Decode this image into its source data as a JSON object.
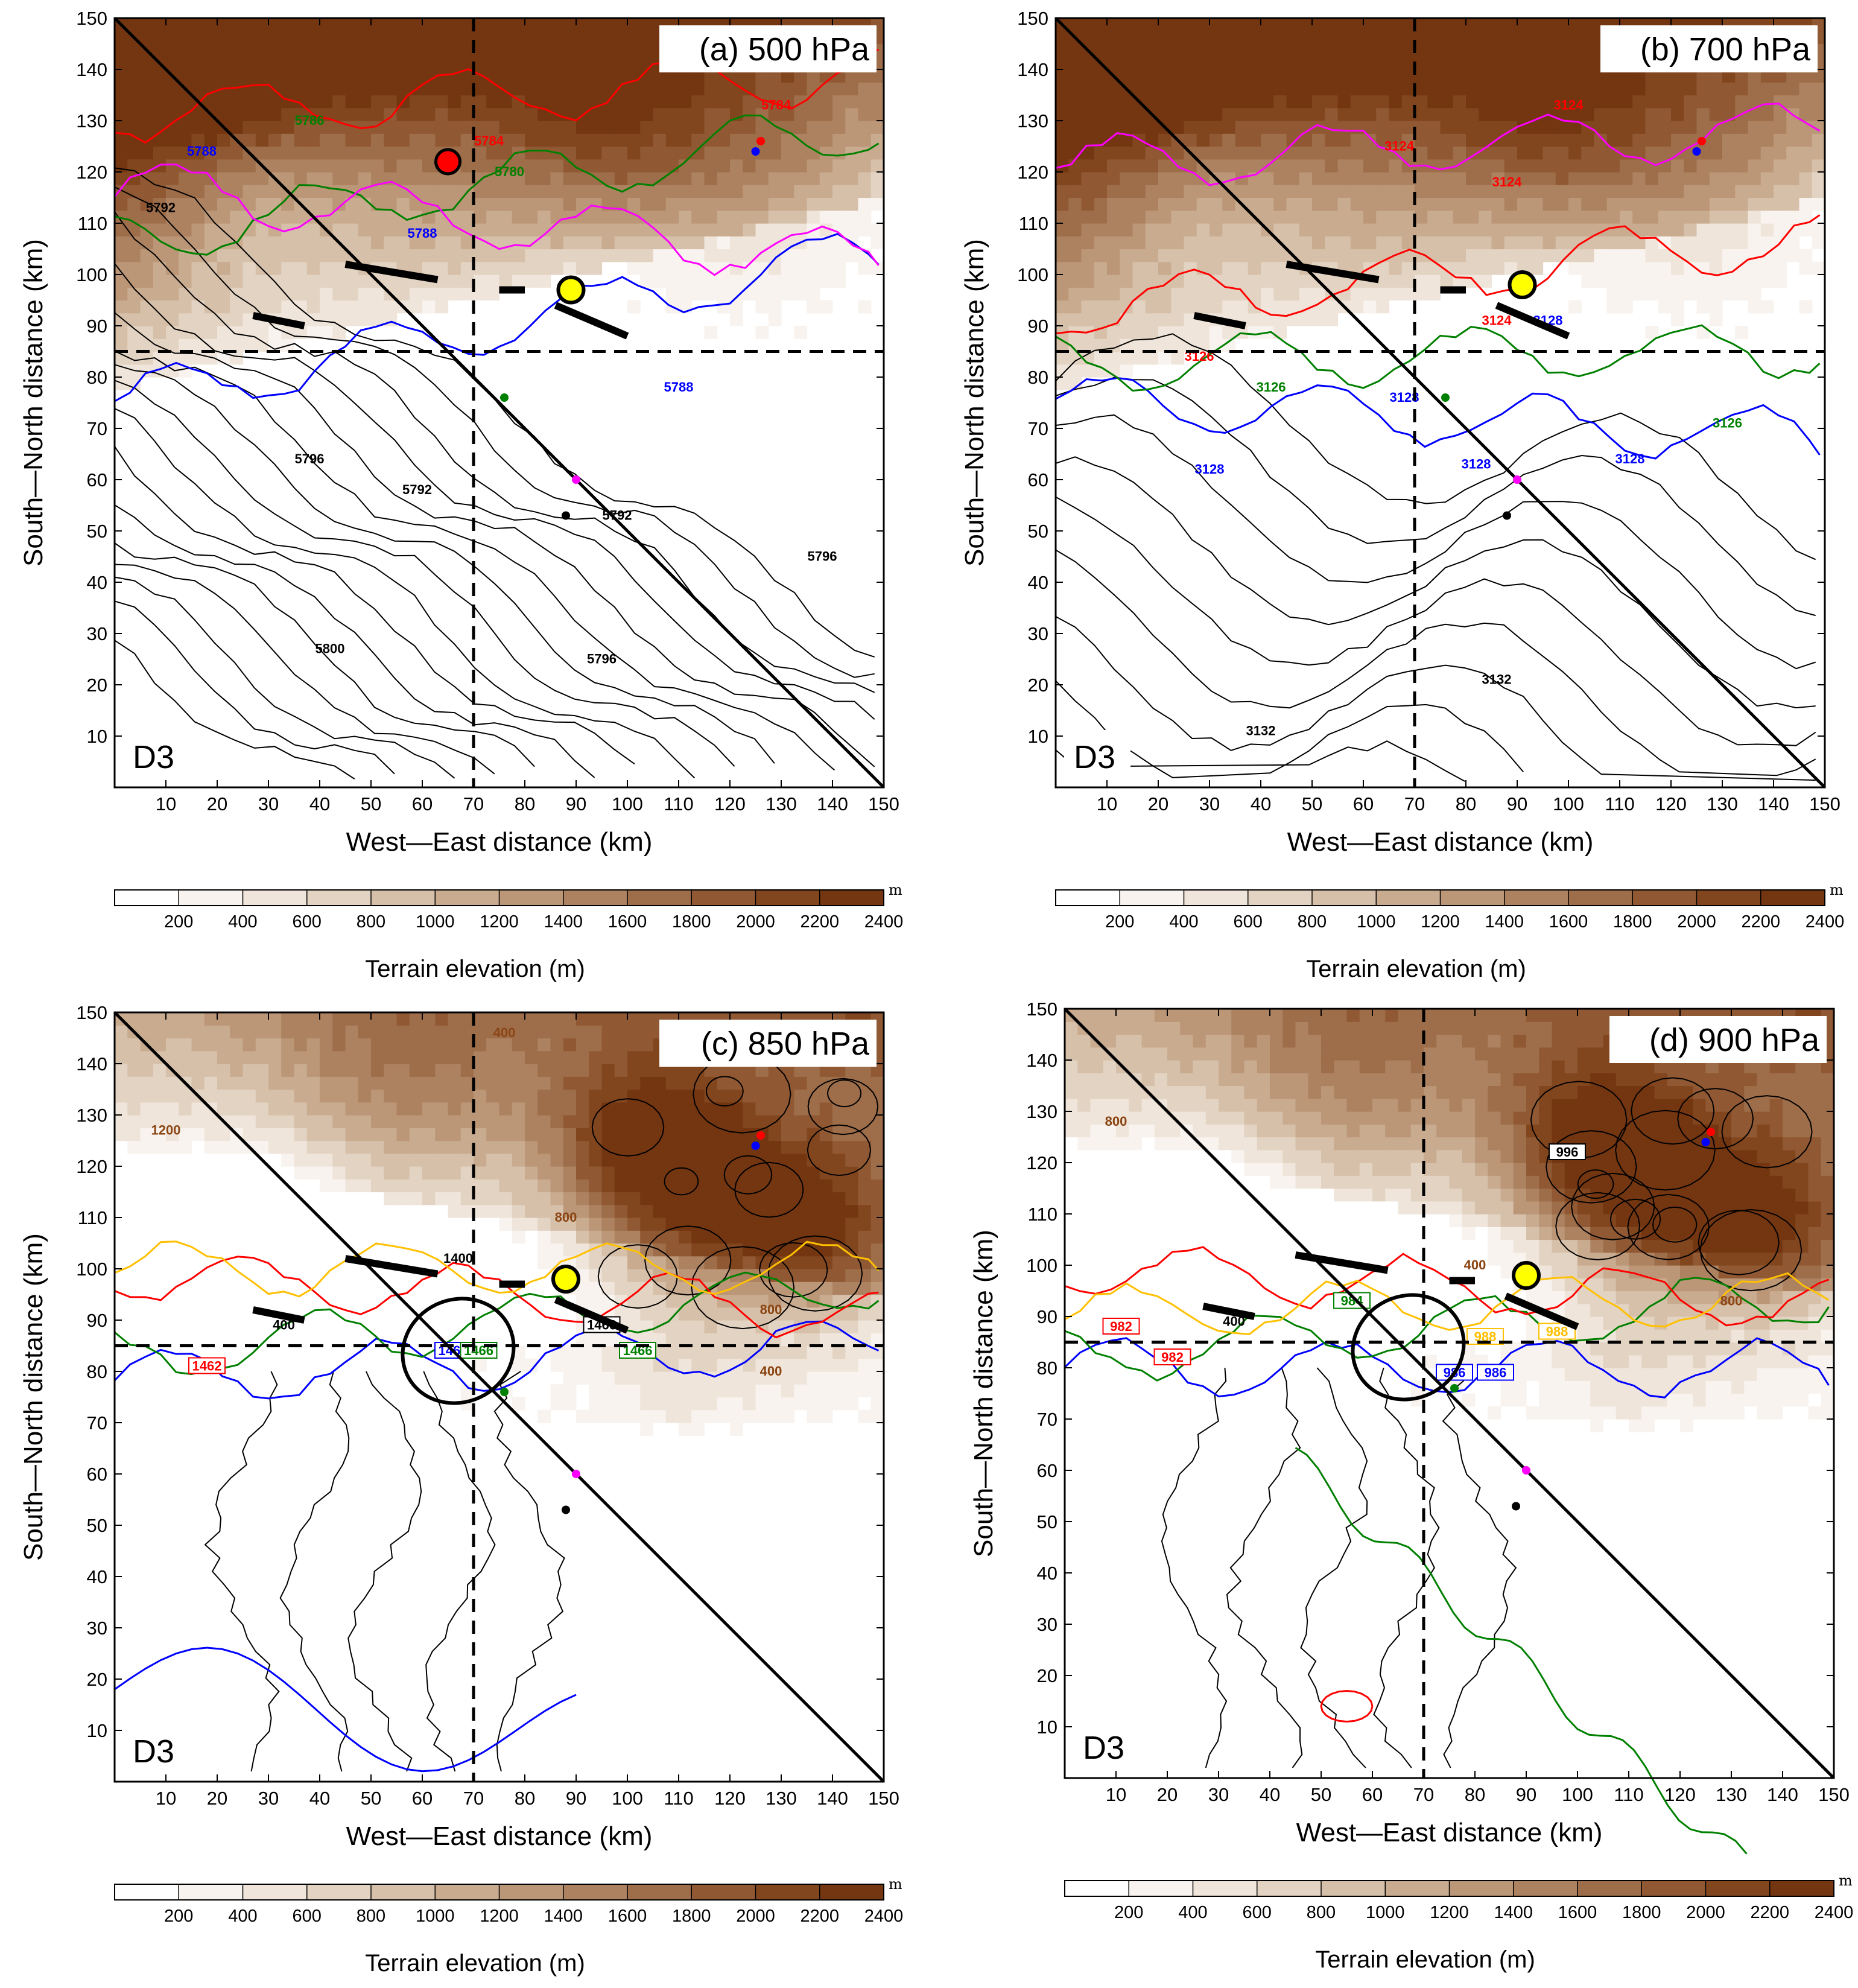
{
  "figure": {
    "xlabel": "West—East distance (km)",
    "ylabel": "South—North distance (km)",
    "domain_label": "D3",
    "colorbar_title": "Terrain elevation (m)",
    "colorbar_unit": "m",
    "axis_range": [
      0,
      150
    ],
    "tick_values": [
      10,
      20,
      30,
      40,
      50,
      60,
      70,
      80,
      90,
      100,
      110,
      120,
      130,
      140,
      150
    ],
    "colors": {
      "terrain": [
        "#ffffff",
        "#f8f3ee",
        "#efe5da",
        "#e3d3c2",
        "#d6c0a9",
        "#c9ab8f",
        "#bb9677",
        "#ad8260",
        "#9e6d49",
        "#905933",
        "#82461f",
        "#733611"
      ],
      "contour_black": "#000000",
      "contour_blue": "#0000ff",
      "contour_green": "#008000",
      "contour_red": "#ff0000",
      "contour_magenta": "#ff00ff",
      "contour_gold": "#ffc000",
      "marker_yellow": "#ffff00",
      "marker_red": "#ff0000"
    }
  },
  "chart_data": [
    {
      "type": "contour",
      "id": "a",
      "title": "(a) 500 hPa",
      "xlabel": "West—East distance (km)",
      "ylabel": "South—North distance (km)",
      "xlim": [
        0,
        150
      ],
      "ylim": [
        0,
        150
      ],
      "contour_labels": [
        {
          "text": "5792",
          "x": 9,
          "y": 113,
          "color": "#000000"
        },
        {
          "text": "5788",
          "x": 17,
          "y": 124,
          "color": "#0000ff"
        },
        {
          "text": "5786",
          "x": 38,
          "y": 130,
          "color": "#008000"
        },
        {
          "text": "5788",
          "x": 60,
          "y": 108,
          "color": "#0000ff"
        },
        {
          "text": "5796",
          "x": 38,
          "y": 64,
          "color": "#000000"
        },
        {
          "text": "5792",
          "x": 59,
          "y": 58,
          "color": "#000000"
        },
        {
          "text": "5792",
          "x": 98,
          "y": 53,
          "color": "#000000"
        },
        {
          "text": "5796",
          "x": 138,
          "y": 45,
          "color": "#000000"
        },
        {
          "text": "5800",
          "x": 42,
          "y": 27,
          "color": "#000000"
        },
        {
          "text": "5796",
          "x": 95,
          "y": 25,
          "color": "#000000"
        },
        {
          "text": "5788",
          "x": 110,
          "y": 78,
          "color": "#0000ff"
        },
        {
          "text": "5784",
          "x": 129,
          "y": 133,
          "color": "#ff0000"
        },
        {
          "text": "5784",
          "x": 73,
          "y": 126,
          "color": "#ff0000"
        },
        {
          "text": "5780",
          "x": 77,
          "y": 120,
          "color": "#008000"
        }
      ],
      "red_circle": {
        "x": 65,
        "y": 122
      },
      "yellow_circle": {
        "x": 89,
        "y": 97
      },
      "has_ellipse": false
    },
    {
      "type": "contour",
      "id": "b",
      "title": "(b) 700 hPa",
      "xlabel": "West—East distance (km)",
      "ylabel": "South—North distance (km)",
      "xlim": [
        0,
        150
      ],
      "ylim": [
        0,
        150
      ],
      "contour_labels": [
        {
          "text": "3124",
          "x": 67,
          "y": 125,
          "color": "#ff0000"
        },
        {
          "text": "3124",
          "x": 88,
          "y": 118,
          "color": "#ff0000"
        },
        {
          "text": "3124",
          "x": 100,
          "y": 133,
          "color": "#ff0000"
        },
        {
          "text": "3124",
          "x": 86,
          "y": 91,
          "color": "#ff0000"
        },
        {
          "text": "3126",
          "x": 28,
          "y": 84,
          "color": "#ff0000"
        },
        {
          "text": "3128",
          "x": 96,
          "y": 91,
          "color": "#0000ff"
        },
        {
          "text": "3126",
          "x": 42,
          "y": 78,
          "color": "#008000"
        },
        {
          "text": "3128",
          "x": 68,
          "y": 76,
          "color": "#0000ff"
        },
        {
          "text": "3128",
          "x": 82,
          "y": 63,
          "color": "#0000ff"
        },
        {
          "text": "3128",
          "x": 30,
          "y": 62,
          "color": "#0000ff"
        },
        {
          "text": "3128",
          "x": 112,
          "y": 64,
          "color": "#0000ff"
        },
        {
          "text": "3126",
          "x": 131,
          "y": 71,
          "color": "#008000"
        },
        {
          "text": "3132",
          "x": 86,
          "y": 21,
          "color": "#000000"
        },
        {
          "text": "3132",
          "x": 40,
          "y": 11,
          "color": "#000000"
        }
      ],
      "red_circle": null,
      "yellow_circle": {
        "x": 91,
        "y": 98
      },
      "has_ellipse": false
    },
    {
      "type": "contour",
      "id": "c",
      "title": "(c) 850 hPa",
      "xlabel": "West—East distance (km)",
      "ylabel": "South—North distance (km)",
      "xlim": [
        0,
        150
      ],
      "ylim": [
        0,
        150
      ],
      "contour_labels": [
        {
          "text": "1462",
          "x": 18,
          "y": 81,
          "color": "#ff0000",
          "boxed": true
        },
        {
          "text": "1464",
          "x": 66,
          "y": 84,
          "color": "#0000ff",
          "boxed": true
        },
        {
          "text": "1466",
          "x": 71,
          "y": 84,
          "color": "#008000",
          "boxed": true
        },
        {
          "text": "1466",
          "x": 95,
          "y": 89,
          "color": "#000000",
          "boxed": true
        },
        {
          "text": "1466",
          "x": 102,
          "y": 84,
          "color": "#008000",
          "boxed": true
        },
        {
          "text": "1400",
          "x": 67,
          "y": 102,
          "color": "#000000"
        },
        {
          "text": "400",
          "x": 33,
          "y": 89,
          "color": "#000000"
        },
        {
          "text": "800",
          "x": 88,
          "y": 110,
          "color": "#8b4513"
        },
        {
          "text": "800",
          "x": 128,
          "y": 92,
          "color": "#8b4513"
        },
        {
          "text": "400",
          "x": 128,
          "y": 80,
          "color": "#8b4513"
        },
        {
          "text": "1200",
          "x": 10,
          "y": 127,
          "color": "#8b4513"
        },
        {
          "text": "400",
          "x": 76,
          "y": 146,
          "color": "#8b4513"
        }
      ],
      "red_circle": null,
      "yellow_circle": {
        "x": 88,
        "y": 98
      },
      "has_ellipse": true
    },
    {
      "type": "contour",
      "id": "d",
      "title": "(d) 900 hPa",
      "xlabel": "West—East distance (km)",
      "ylabel": "South—North distance (km)",
      "xlim": [
        0,
        150
      ],
      "ylim": [
        0,
        150
      ],
      "contour_labels": [
        {
          "text": "982",
          "x": 11,
          "y": 88,
          "color": "#ff0000",
          "boxed": true
        },
        {
          "text": "982",
          "x": 21,
          "y": 82,
          "color": "#ff0000",
          "boxed": true
        },
        {
          "text": "986",
          "x": 76,
          "y": 79,
          "color": "#0000ff",
          "boxed": true
        },
        {
          "text": "986",
          "x": 84,
          "y": 79,
          "color": "#0000ff",
          "boxed": true
        },
        {
          "text": "988",
          "x": 82,
          "y": 86,
          "color": "#ffc000",
          "boxed": true
        },
        {
          "text": "988",
          "x": 96,
          "y": 87,
          "color": "#ffc000",
          "boxed": true
        },
        {
          "text": "984",
          "x": 56,
          "y": 93,
          "color": "#008000",
          "boxed": true
        },
        {
          "text": "996",
          "x": 98,
          "y": 122,
          "color": "#000000",
          "boxed": true
        },
        {
          "text": "400",
          "x": 80,
          "y": 100,
          "color": "#8b4513"
        },
        {
          "text": "400",
          "x": 33,
          "y": 89,
          "color": "#000000"
        },
        {
          "text": "800",
          "x": 130,
          "y": 93,
          "color": "#8b4513"
        },
        {
          "text": "800",
          "x": 10,
          "y": 128,
          "color": "#8b4513"
        }
      ],
      "red_circle": null,
      "yellow_circle": {
        "x": 90,
        "y": 98
      },
      "has_ellipse": true
    }
  ],
  "colorbar": {
    "labels": [
      "200",
      "400",
      "600",
      "800",
      "1000",
      "1200",
      "1400",
      "1600",
      "1800",
      "2000",
      "2200",
      "2400"
    ]
  }
}
